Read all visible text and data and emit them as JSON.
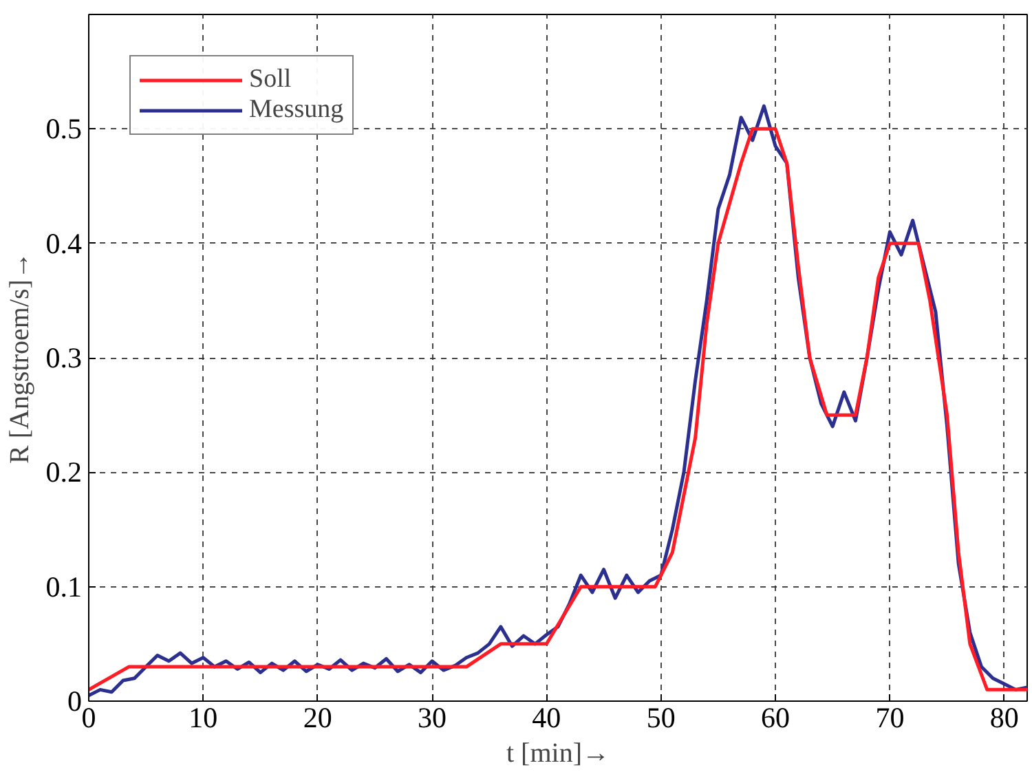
{
  "chart_data": {
    "type": "line",
    "xlabel": "t [min]→",
    "ylabel": "R [Angstroem/s]→",
    "xlim": [
      0,
      82
    ],
    "ylim": [
      0,
      0.6
    ],
    "xticks": [
      0,
      10,
      20,
      30,
      40,
      50,
      60,
      70,
      80
    ],
    "yticks": [
      0,
      0.1,
      0.2,
      0.3,
      0.4,
      0.5
    ],
    "grid": true,
    "legend": "top left",
    "line_style": "solid",
    "marker": "none",
    "series": [
      {
        "name": "Soll",
        "color": "#ff1c24",
        "x": [
          0,
          3.5,
          33,
          36,
          40,
          43,
          49.5,
          51,
          53,
          54,
          55,
          57,
          58,
          60,
          61,
          62,
          63,
          64.5,
          67,
          68,
          69,
          70,
          72.5,
          73.5,
          75,
          76,
          77,
          78.5,
          82
        ],
        "values": [
          0.01,
          0.03,
          0.03,
          0.05,
          0.05,
          0.1,
          0.1,
          0.13,
          0.23,
          0.33,
          0.4,
          0.47,
          0.5,
          0.5,
          0.47,
          0.38,
          0.3,
          0.25,
          0.25,
          0.3,
          0.37,
          0.4,
          0.4,
          0.35,
          0.25,
          0.13,
          0.05,
          0.01,
          0.01
        ]
      },
      {
        "name": "Messung",
        "color": "#2b2f8f",
        "x": [
          0,
          1,
          2,
          3,
          4,
          5,
          6,
          7,
          8,
          9,
          10,
          11,
          12,
          13,
          14,
          15,
          16,
          17,
          18,
          19,
          20,
          21,
          22,
          23,
          24,
          25,
          26,
          27,
          28,
          29,
          30,
          31,
          32,
          33,
          34,
          35,
          36,
          37,
          38,
          39,
          40,
          41,
          42,
          43,
          44,
          45,
          46,
          47,
          48,
          49,
          50,
          51,
          52,
          53,
          54,
          55,
          56,
          57,
          58,
          59,
          60,
          61,
          62,
          63,
          64,
          65,
          66,
          67,
          68,
          69,
          70,
          71,
          72,
          73,
          74,
          75,
          76,
          77,
          78,
          79,
          80,
          81,
          82
        ],
        "values": [
          0.005,
          0.01,
          0.008,
          0.018,
          0.02,
          0.03,
          0.04,
          0.035,
          0.042,
          0.033,
          0.038,
          0.03,
          0.035,
          0.028,
          0.034,
          0.025,
          0.033,
          0.027,
          0.035,
          0.026,
          0.032,
          0.028,
          0.036,
          0.027,
          0.033,
          0.029,
          0.037,
          0.026,
          0.032,
          0.025,
          0.035,
          0.027,
          0.031,
          0.038,
          0.042,
          0.05,
          0.065,
          0.048,
          0.057,
          0.05,
          0.058,
          0.065,
          0.085,
          0.11,
          0.095,
          0.115,
          0.09,
          0.11,
          0.095,
          0.105,
          0.11,
          0.15,
          0.2,
          0.28,
          0.35,
          0.43,
          0.46,
          0.51,
          0.49,
          0.52,
          0.485,
          0.47,
          0.37,
          0.3,
          0.26,
          0.24,
          0.27,
          0.245,
          0.3,
          0.36,
          0.41,
          0.39,
          0.42,
          0.38,
          0.34,
          0.24,
          0.12,
          0.06,
          0.03,
          0.02,
          0.015,
          0.01,
          0.012
        ]
      }
    ]
  }
}
